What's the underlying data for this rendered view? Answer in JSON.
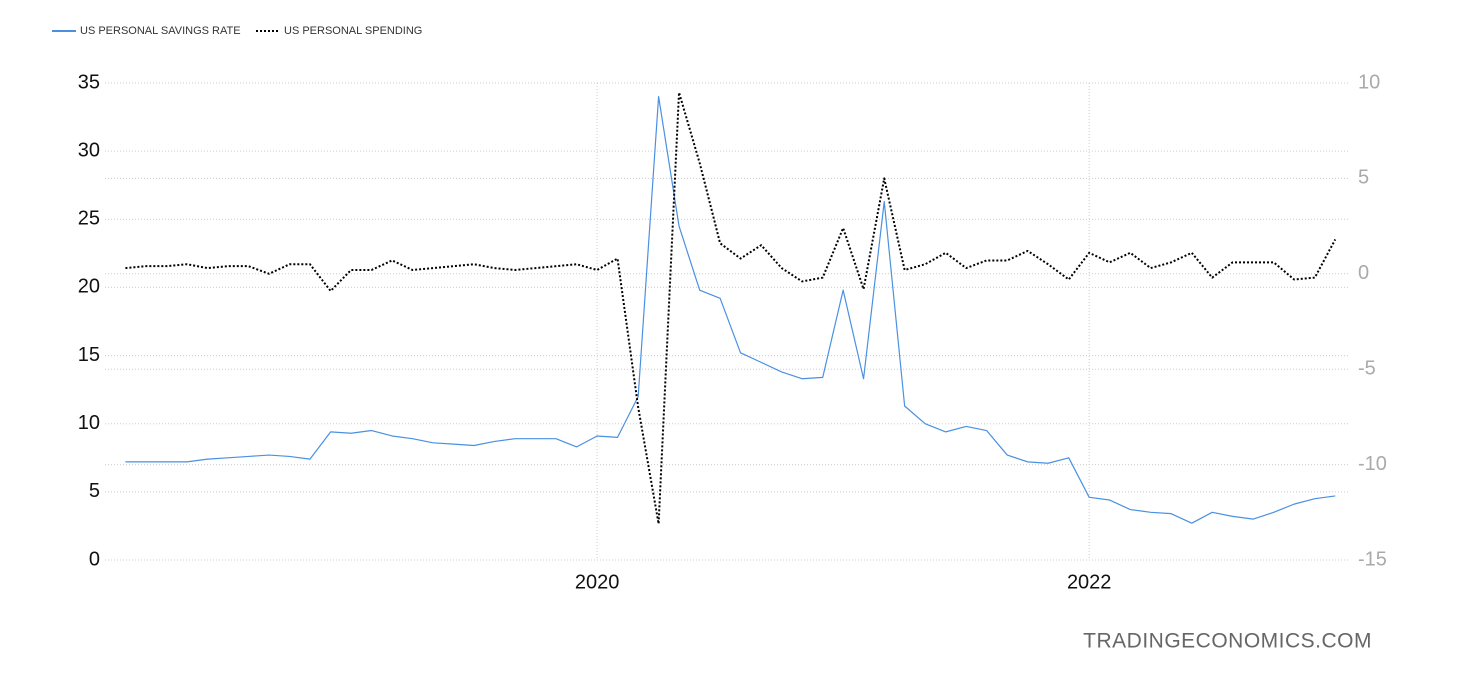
{
  "chart_data": {
    "type": "line",
    "watermark": "TRADINGECONOMICS.COM",
    "x": [
      2018.083,
      2018.167,
      2018.25,
      2018.333,
      2018.417,
      2018.5,
      2018.583,
      2018.667,
      2018.75,
      2018.833,
      2018.917,
      2019.0,
      2019.083,
      2019.167,
      2019.25,
      2019.333,
      2019.417,
      2019.5,
      2019.583,
      2019.667,
      2019.75,
      2019.833,
      2019.917,
      2020.0,
      2020.083,
      2020.167,
      2020.25,
      2020.333,
      2020.417,
      2020.5,
      2020.583,
      2020.667,
      2020.75,
      2020.833,
      2020.917,
      2021.0,
      2021.083,
      2021.167,
      2021.25,
      2021.333,
      2021.417,
      2021.5,
      2021.583,
      2021.667,
      2021.75,
      2021.833,
      2021.917,
      2022.0,
      2022.083,
      2022.167,
      2022.25,
      2022.333,
      2022.417,
      2022.5,
      2022.583,
      2022.667,
      2022.75,
      2022.833,
      2022.917,
      2023.0
    ],
    "series": [
      {
        "name": "US PERSONAL SAVINGS RATE",
        "color": "#4a90e2",
        "dash": "solid",
        "values": [
          7.2,
          7.2,
          7.2,
          7.2,
          7.4,
          7.5,
          7.6,
          7.7,
          7.6,
          7.4,
          9.4,
          9.3,
          9.5,
          9.1,
          8.9,
          8.6,
          8.5,
          8.4,
          8.7,
          8.9,
          8.9,
          8.9,
          8.3,
          9.1,
          9.0,
          12.0,
          34.0,
          24.5,
          19.8,
          19.2,
          15.2,
          14.5,
          13.8,
          13.3,
          13.4,
          19.8,
          13.3,
          26.3,
          11.3,
          10.0,
          9.4,
          9.8,
          9.5,
          7.7,
          7.2,
          7.1,
          7.5,
          4.6,
          4.4,
          3.7,
          3.5,
          3.4,
          2.7,
          3.5,
          3.2,
          3.0,
          3.5,
          4.1,
          4.5,
          4.7
        ]
      },
      {
        "name": "US PERSONAL SPENDING",
        "color": "#000000",
        "dash": "dotted",
        "axis": "y2",
        "values": [
          0.3,
          0.4,
          0.4,
          0.5,
          0.3,
          0.4,
          0.4,
          0.0,
          0.5,
          0.5,
          -0.9,
          0.2,
          0.2,
          0.7,
          0.2,
          0.3,
          0.4,
          0.5,
          0.3,
          0.2,
          0.3,
          0.4,
          0.5,
          0.2,
          0.8,
          -7.0,
          -13.1,
          9.5,
          5.8,
          1.6,
          0.8,
          1.5,
          0.3,
          -0.4,
          -0.2,
          2.4,
          -0.8,
          5.0,
          0.2,
          0.5,
          1.1,
          0.3,
          0.7,
          0.7,
          1.2,
          0.5,
          -0.3,
          1.1,
          0.6,
          1.1,
          0.3,
          0.6,
          1.1,
          -0.2,
          0.6,
          0.6,
          0.6,
          -0.3,
          -0.2,
          1.8
        ]
      }
    ],
    "xlim": [
      2018.0,
      2023.06
    ],
    "xticks": [
      2020,
      2022
    ],
    "ylim": [
      0,
      35
    ],
    "yticks": [
      0,
      5,
      10,
      15,
      20,
      25,
      30,
      35
    ],
    "y2lim": [
      -15,
      10
    ],
    "y2ticks": [
      -15,
      -10,
      -5,
      0,
      5,
      10
    ],
    "grid": true,
    "legend": "top-left"
  }
}
